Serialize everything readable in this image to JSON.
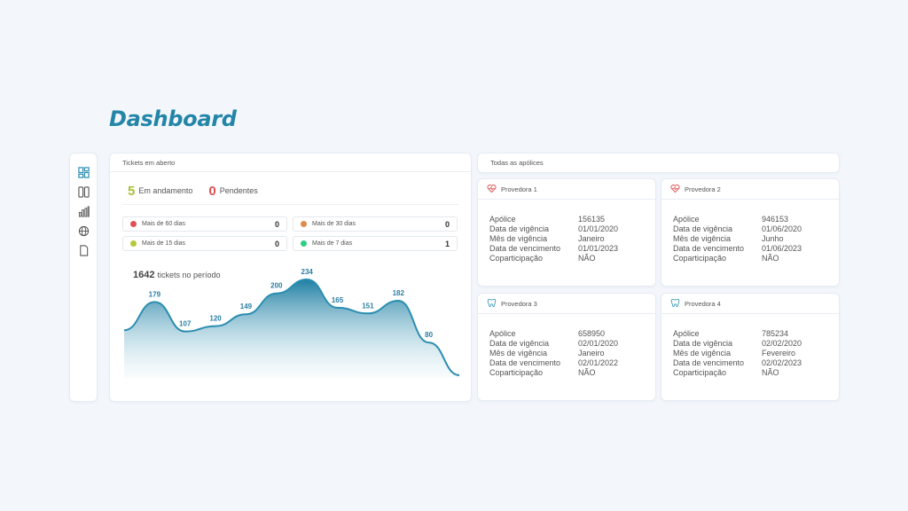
{
  "page": {
    "title": "Dashboard"
  },
  "sidebar": {
    "items": [
      {
        "icon": "dashboard-icon"
      },
      {
        "icon": "columns-icon"
      },
      {
        "icon": "bar-chart-icon"
      },
      {
        "icon": "globe-icon"
      },
      {
        "icon": "document-icon"
      }
    ]
  },
  "tickets": {
    "header": "Tickets em aberto",
    "in_progress": {
      "count": "5",
      "label": "Em andamento"
    },
    "pending": {
      "count": "0",
      "label": "Pendentes"
    },
    "age_buckets": [
      {
        "label": "Mais de 60 dias",
        "count": "0",
        "color": "#e05252"
      },
      {
        "label": "Mais de 30 dias",
        "count": "0",
        "color": "#e08a4a"
      },
      {
        "label": "Mais de 15 dias",
        "count": "0",
        "color": "#b5c93a"
      },
      {
        "label": "Mais de 7 dias",
        "count": "1",
        "color": "#2fce83"
      }
    ],
    "total": "1642",
    "total_label": "tickets no período"
  },
  "chart_data": {
    "type": "area",
    "title": "",
    "xlabel": "",
    "ylabel": "",
    "x": [
      1,
      2,
      3,
      4,
      5,
      6,
      7,
      8,
      9,
      10,
      11,
      12
    ],
    "values": [
      null,
      179,
      107,
      120,
      149,
      200,
      234,
      165,
      151,
      182,
      80,
      null
    ],
    "data_labels": [
      "",
      "179",
      "107",
      "120",
      "149",
      "200",
      "234",
      "165",
      "151",
      "182",
      "80",
      ""
    ],
    "curve": [
      110,
      179,
      107,
      120,
      149,
      200,
      234,
      165,
      151,
      182,
      80,
      0
    ],
    "grid": false,
    "color": "#2a8db0"
  },
  "policies": {
    "header": "Todas as apólices",
    "field_labels": {
      "policy": "Apólice",
      "start": "Data de vigência",
      "month": "Mês de vigência",
      "due": "Data de vencimento",
      "copay": "Coparticipação"
    },
    "cards": [
      {
        "provider": "Provedora 1",
        "icon": "heart-pulse-icon",
        "policy": "156135",
        "start": "01/01/2020",
        "month": "Janeiro",
        "due": "01/01/2023",
        "copay": "NÃO"
      },
      {
        "provider": "Provedora 2",
        "icon": "heart-pulse-icon",
        "policy": "946153",
        "start": "01/06/2020",
        "month": "Junho",
        "due": "01/06/2023",
        "copay": "NÃO"
      },
      {
        "provider": "Provedora 3",
        "icon": "tooth-icon",
        "policy": "658950",
        "start": "02/01/2020",
        "month": "Janeiro",
        "due": "02/01/2022",
        "copay": "NÃO"
      },
      {
        "provider": "Provedora 4",
        "icon": "tooth-icon",
        "policy": "785234",
        "start": "02/02/2020",
        "month": "Fevereiro",
        "due": "02/02/2023",
        "copay": "NÃO"
      }
    ]
  }
}
